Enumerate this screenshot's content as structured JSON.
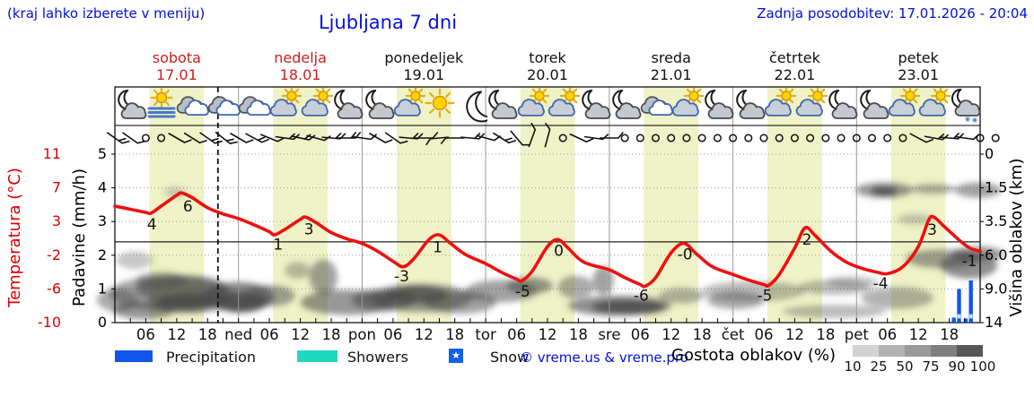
{
  "header": {
    "hint": "(kraj lahko izberete v meniju)",
    "title": "Ljubljana 7 dni",
    "updated": "Zadnja posodobitev: 17.01.2026 - 20:04"
  },
  "axes": {
    "temp_label": "Temperatura (°C)",
    "precip_label": "Padavine (mm/h)",
    "cloud_label": "Višina oblakov (km)",
    "temp_ticks": [
      "11",
      "7",
      "3",
      "-2",
      "-6",
      "-10"
    ],
    "precip_ticks": [
      "5",
      "4",
      "3",
      "2",
      "1",
      "0"
    ],
    "cloud_ticks": [
      "14",
      "9.0",
      "6.0",
      "3.5",
      "1.5",
      "0"
    ]
  },
  "days": [
    {
      "name": "sobota",
      "date": "17.01",
      "red": true
    },
    {
      "name": "nedelja",
      "date": "18.01",
      "red": true
    },
    {
      "name": "ponedeljek",
      "date": "19.01",
      "red": false
    },
    {
      "name": "torek",
      "date": "20.01",
      "red": false
    },
    {
      "name": "sreda",
      "date": "21.01",
      "red": false
    },
    {
      "name": "četrtek",
      "date": "22.01",
      "red": false
    },
    {
      "name": "petek",
      "date": "23.01",
      "red": false
    }
  ],
  "x_hour_labels": [
    "06",
    "12",
    "18"
  ],
  "day_abbrs": [
    "ned",
    "pon",
    "tor",
    "sre",
    "čet",
    "pet"
  ],
  "legend": {
    "precipitation": "Precipitation",
    "showers": "Showers",
    "snow": "Snow",
    "snow_glyph": "★",
    "copyright": "© vreme.us & vreme.pro",
    "cloud_density": "Gostota oblakov (%)",
    "density_ticks": [
      "10",
      "25",
      "50",
      "75",
      "90",
      "100"
    ],
    "density_colors": [
      "#d2d2d2",
      "#b2b2b2",
      "#999999",
      "#7e7e7e",
      "#575757"
    ]
  },
  "colors": {
    "blue_text": "#0010dd",
    "red_axis": "#dd0000",
    "red_day": "#cc2020",
    "curve": "#ee1010",
    "band": "#eef2c6",
    "grid": "#999999",
    "precip_bar": "#1155ee",
    "showers": "#1fd8c0",
    "cloud_gray": "#464646"
  },
  "chart_data": {
    "type": "line",
    "title": "Ljubljana 7 dni",
    "hours_total": 168,
    "temp_axis_range_c": [
      -10.4,
      11.3
    ],
    "precip_axis_range_mmh": [
      0,
      5.6
    ],
    "cloud_height_ticks_km": [
      0,
      1.5,
      3.5,
      6.0,
      9.0,
      14
    ],
    "zero_line_c": 0,
    "now_hour": 20,
    "day_band": {
      "start_hour": 6.7,
      "end_hour": 17.3
    },
    "temperature_c": {
      "x_hours": [
        0,
        3,
        6,
        7,
        9,
        12,
        13,
        15,
        18,
        21,
        24,
        27,
        30,
        31,
        33,
        36,
        37,
        39,
        42,
        45,
        48,
        51,
        54,
        56,
        58,
        61,
        63,
        65,
        68,
        72,
        75,
        78,
        79,
        81,
        84,
        86,
        88,
        91,
        96,
        99,
        102,
        103,
        105,
        108,
        110.5,
        113,
        116,
        120,
        123,
        126,
        127,
        129,
        132,
        134,
        136,
        139,
        142,
        145,
        148,
        150,
        153,
        156,
        158,
        159,
        161,
        164,
        166,
        168
      ],
      "values": [
        4.6,
        4.2,
        3.8,
        3.7,
        4.6,
        6.0,
        6.3,
        5.7,
        4.4,
        3.6,
        3.0,
        2.2,
        1.3,
        0.9,
        1.6,
        2.9,
        3.2,
        2.5,
        1.2,
        0.4,
        -0.2,
        -1.2,
        -2.5,
        -3.2,
        -2.2,
        0.3,
        0.9,
        -0.1,
        -1.6,
        -2.8,
        -3.9,
        -4.8,
        -5.0,
        -3.8,
        -0.6,
        0.3,
        -0.8,
        -2.6,
        -3.6,
        -4.6,
        -5.5,
        -5.7,
        -4.6,
        -1.4,
        -0.2,
        -1.6,
        -3.2,
        -4.2,
        -4.9,
        -5.5,
        -5.6,
        -4.2,
        -0.8,
        1.8,
        0.8,
        -1.2,
        -2.6,
        -3.4,
        -3.9,
        -4.1,
        -3.2,
        -0.6,
        2.8,
        3.2,
        2.0,
        0.2,
        -0.8,
        -1.2
      ]
    },
    "point_labels": [
      {
        "t": 7,
        "label": "4"
      },
      {
        "t": 14,
        "label": "6"
      },
      {
        "t": 31.5,
        "label": "1"
      },
      {
        "t": 37.5,
        "label": "3"
      },
      {
        "t": 55.5,
        "label": "-3"
      },
      {
        "t": 62.5,
        "label": "1"
      },
      {
        "t": 79,
        "label": "-5"
      },
      {
        "t": 86,
        "label": "0"
      },
      {
        "t": 102,
        "label": "-6"
      },
      {
        "t": 110.5,
        "label": "-0"
      },
      {
        "t": 126,
        "label": "-5"
      },
      {
        "t": 134.2,
        "label": "2"
      },
      {
        "t": 148.5,
        "label": "-4"
      },
      {
        "t": 158.5,
        "label": "3"
      },
      {
        "t": 167.2,
        "label": "-1"
      }
    ],
    "precip_bars_mmh": [
      {
        "t": 162.9,
        "mm": 0.15,
        "snow": false
      },
      {
        "t": 163.9,
        "mm": 1.0,
        "snow": true
      },
      {
        "t": 165.2,
        "mm": 0.12,
        "snow": false
      },
      {
        "t": 166.2,
        "mm": 1.25,
        "snow": true
      }
    ],
    "clouds": [
      [
        0.5,
        1.0,
        4,
        0.5,
        0.45
      ],
      [
        3.8,
        3.2,
        3.5,
        0.55,
        0.3
      ],
      [
        9,
        2.0,
        5,
        0.5,
        0.45
      ],
      [
        10.8,
        1.3,
        12,
        0.85,
        0.5
      ],
      [
        13,
        1.5,
        9,
        0.7,
        0.55
      ],
      [
        14,
        0.85,
        6,
        0.35,
        0.75
      ],
      [
        14.3,
        0.9,
        8,
        0.5,
        0.35
      ],
      [
        5.6,
        0.55,
        6,
        0.4,
        0.55
      ],
      [
        11.7,
        8.6,
        2,
        0.5,
        0.25
      ],
      [
        24,
        1.15,
        7,
        0.7,
        0.65
      ],
      [
        24.5,
        0.9,
        5,
        0.45,
        0.8
      ],
      [
        30,
        1.2,
        5,
        0.5,
        0.5
      ],
      [
        35.5,
        2.6,
        2.5,
        0.5,
        0.35
      ],
      [
        40.5,
        2.2,
        2.7,
        1.0,
        0.5
      ],
      [
        45,
        0.9,
        9,
        0.55,
        0.55
      ],
      [
        52,
        1.0,
        6,
        0.5,
        0.6
      ],
      [
        58.5,
        1.25,
        6,
        0.4,
        0.7
      ],
      [
        59.5,
        1.1,
        10,
        0.65,
        0.55
      ],
      [
        67,
        0.9,
        7,
        0.5,
        0.5
      ],
      [
        75,
        1.4,
        7,
        0.55,
        0.5
      ],
      [
        80.5,
        1.7,
        4.5,
        0.45,
        0.55
      ],
      [
        89.5,
        1.6,
        3.5,
        0.6,
        0.45
      ],
      [
        94.8,
        2.0,
        2,
        0.8,
        0.5
      ],
      [
        98,
        0.75,
        10,
        0.45,
        0.6
      ],
      [
        99.6,
        0.7,
        7,
        0.3,
        0.8
      ],
      [
        110,
        1.2,
        4.5,
        0.35,
        0.4
      ],
      [
        120.5,
        1.0,
        5.5,
        0.4,
        0.45
      ],
      [
        124,
        1.4,
        10,
        0.5,
        0.35
      ],
      [
        139.7,
        1.6,
        7,
        0.4,
        0.35
      ],
      [
        143.2,
        1.9,
        5,
        0.35,
        0.3
      ],
      [
        139.7,
        0.5,
        10,
        0.3,
        0.35
      ],
      [
        149.3,
        8.8,
        5.5,
        0.8,
        0.55
      ],
      [
        149.3,
        8.7,
        2.5,
        0.45,
        0.8
      ],
      [
        158.9,
        8.9,
        4.5,
        0.5,
        0.45
      ],
      [
        167.6,
        8.8,
        4.5,
        0.8,
        0.5
      ],
      [
        160.6,
        3.3,
        7,
        0.6,
        0.5
      ],
      [
        165.8,
        2.9,
        5.5,
        0.8,
        0.6
      ],
      [
        167.6,
        3.6,
        5,
        0.5,
        0.55
      ],
      [
        151.9,
        1.1,
        7,
        0.5,
        0.4
      ],
      [
        155.4,
        6.2,
        3.5,
        0.4,
        0.3
      ]
    ],
    "wind_3h": [
      [
        35,
        2
      ],
      [
        35,
        1
      ],
      "o",
      "o",
      [
        30,
        1
      ],
      [
        32,
        1
      ],
      [
        35,
        2
      ],
      [
        38,
        2
      ],
      [
        30,
        1
      ],
      [
        28,
        2
      ],
      [
        22,
        1
      ],
      [
        8,
        2
      ],
      [
        12,
        2
      ],
      [
        15,
        1
      ],
      [
        5,
        2
      ],
      [
        0,
        2
      ],
      [
        8,
        1
      ],
      [
        30,
        1
      ],
      [
        35,
        1
      ],
      [
        5,
        2
      ],
      [
        0,
        1
      ],
      [
        175,
        1
      ],
      [
        180,
        1
      ],
      [
        5,
        2
      ],
      [
        15,
        1
      ],
      [
        32,
        2
      ],
      [
        50,
        1
      ],
      [
        -70,
        1
      ],
      [
        -75,
        1
      ],
      "o",
      [
        25,
        1
      ],
      [
        8,
        1
      ],
      [
        0,
        1
      ],
      "o",
      "o",
      "o",
      "o",
      "o",
      "o",
      "o",
      "o",
      "o",
      "o",
      "o",
      "o",
      "o",
      "o",
      "o",
      "o",
      "o",
      "o",
      "o",
      [
        28,
        1
      ],
      [
        10,
        2
      ],
      [
        5,
        2
      ],
      [
        8,
        1
      ],
      "o",
      "o"
    ],
    "icons_6h": [
      "moon-cloud",
      "sun-fog",
      "cloud",
      "cloud",
      "cloud",
      "sun-cloud",
      "sun-cloud",
      "moon-cloud",
      "moon-cloud",
      "sun-cloud",
      "sun",
      "moon",
      "moon-cloud",
      "sun-cloud",
      "sun-cloud",
      "moon-cloud",
      "moon-cloud",
      "cloud",
      "sun-cloud",
      "moon-cloud",
      "moon-cloud",
      "sun-cloud",
      "sun-cloud",
      "moon-cloud",
      "moon-cloud",
      "sun-cloud",
      "sun-cloud",
      "moon-cloud-snow"
    ]
  }
}
